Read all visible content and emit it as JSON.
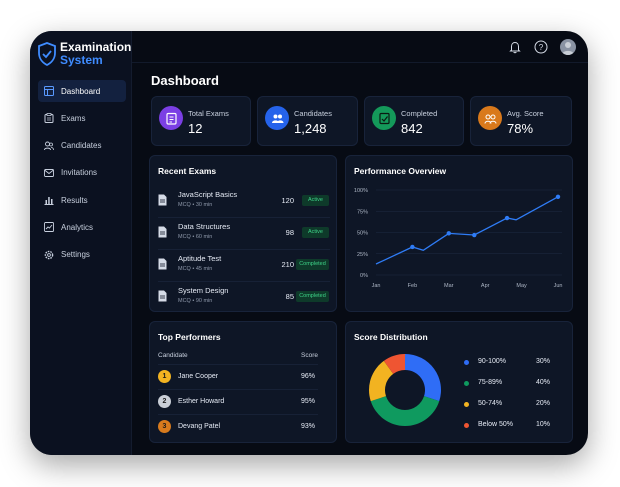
{
  "app": {
    "title_line1": "Examination",
    "title_line2": "System"
  },
  "sidebar": {
    "items": [
      {
        "label": "Dashboard",
        "active": true
      },
      {
        "label": "Exams"
      },
      {
        "label": "Candidates"
      },
      {
        "label": "Invitations"
      },
      {
        "label": "Results"
      },
      {
        "label": "Analytics"
      },
      {
        "label": "Settings"
      }
    ]
  },
  "header": {
    "icons": [
      "bell-icon",
      "help-icon",
      "avatar"
    ]
  },
  "page": {
    "title": "Dashboard"
  },
  "stats": [
    {
      "label": "Total Exams",
      "value": "12",
      "color": "#7b3fe4",
      "icon": "clipboard-icon"
    },
    {
      "label": "Candidates",
      "value": "1,248",
      "color": "#2563eb",
      "icon": "users-icon"
    },
    {
      "label": "Completed",
      "value": "842",
      "color": "#14995a",
      "icon": "document-check-icon"
    },
    {
      "label": "Avg. Score",
      "value": "78%",
      "color": "#d9791b",
      "icon": "group-icon"
    }
  ],
  "recent_exams": {
    "title": "Recent Exams",
    "items": [
      {
        "name": "JavaScript Basics",
        "meta": "MCQ • 30 min",
        "count": "120",
        "status": "Active"
      },
      {
        "name": "Data Structures",
        "meta": "MCQ • 60 min",
        "count": "98",
        "status": "Active"
      },
      {
        "name": "Aptitude Test",
        "meta": "MCQ • 45 min",
        "count": "210",
        "status": "Completed"
      },
      {
        "name": "System Design",
        "meta": "MCQ • 90 min",
        "count": "85",
        "status": "Completed"
      }
    ]
  },
  "performance": {
    "title": "Performance Overview",
    "chart_data": {
      "type": "line",
      "title": "Performance Overview",
      "categories": [
        "Jan",
        "Feb",
        "Mar",
        "Apr",
        "May",
        "Jun"
      ],
      "ytick_labels": [
        "100%",
        "75%",
        "50%",
        "25%",
        "0%"
      ],
      "ylim": [
        0,
        100
      ],
      "grid": true,
      "color": "#2f7cf6",
      "points": [
        {
          "x": 0,
          "y": 13
        },
        {
          "x": 1,
          "y": 33
        },
        {
          "x": 1.3,
          "y": 29
        },
        {
          "x": 2,
          "y": 49
        },
        {
          "x": 2.7,
          "y": 47
        },
        {
          "x": 3.6,
          "y": 67
        },
        {
          "x": 3.85,
          "y": 65
        },
        {
          "x": 5,
          "y": 92
        }
      ],
      "markers_at": [
        1,
        3,
        4,
        5,
        7
      ]
    }
  },
  "top_performers": {
    "title": "Top Performers",
    "col_candidate": "Candidate",
    "col_score": "Score",
    "items": [
      {
        "rank": "1",
        "name": "Jane Cooper",
        "score": "96%",
        "color": "#f2b321"
      },
      {
        "rank": "2",
        "name": "Esther Howard",
        "score": "95%",
        "color": "#c9ced6"
      },
      {
        "rank": "3",
        "name": "Devang Patel",
        "score": "93%",
        "color": "#d77a1d"
      }
    ]
  },
  "score_distribution": {
    "title": "Score Distribution",
    "chart_data": {
      "type": "pie",
      "title": "Score Distribution",
      "slices": [
        {
          "label": "90-100%",
          "value": 30,
          "display": "30%",
          "color": "#2f6df6"
        },
        {
          "label": "75-89%",
          "value": 40,
          "display": "40%",
          "color": "#0f9a5f"
        },
        {
          "label": "50-74%",
          "value": 20,
          "display": "20%",
          "color": "#f2b321"
        },
        {
          "label": "Below 50%",
          "value": 10,
          "display": "10%",
          "color": "#ef5532"
        }
      ]
    }
  }
}
